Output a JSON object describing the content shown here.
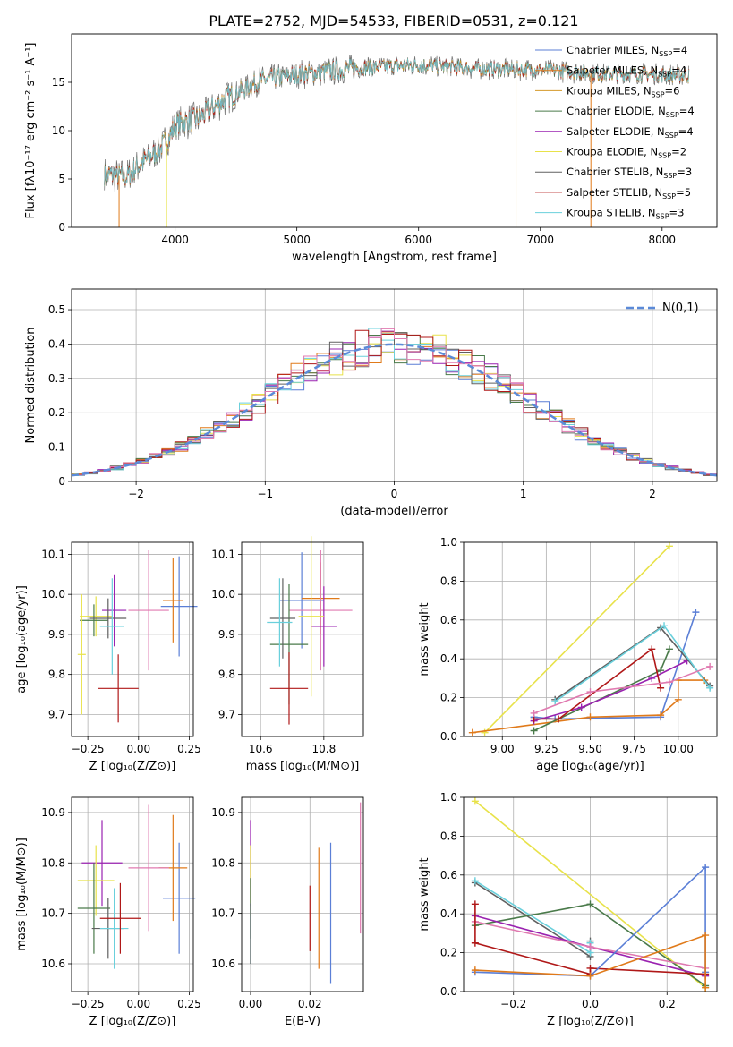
{
  "figure_title": "PLATE=2752, MJD=54533, FIBERID=0531, z=0.121",
  "colors": {
    "Chabrier MILES": "#5b7fd6",
    "Salpeter MILES": "#e07a1a",
    "Kroupa MILES": "#d49a2a",
    "Chabrier ELODIE": "#4a7a4a",
    "Salpeter ELODIE": "#9a22b0",
    "Kroupa ELODIE": "#e8e24a",
    "Chabrier STELIB": "#606060",
    "Salpeter STELIB": "#b01818",
    "Kroupa STELIB": "#6ad0dc",
    "pink": "#e07ab0",
    "lime": "#c8ec50",
    "gaussian": "#5b8ad8",
    "grid": "#b0b0b0"
  },
  "chart_data": [
    {
      "id": "spectrum",
      "type": "line",
      "xlabel": "wavelength [Angstrom, rest frame]",
      "ylabel": "Flux [fλ10⁻¹⁷ erg cm⁻² s⁻¹ A⁻¹]",
      "xlim": [
        3150,
        8450
      ],
      "ylim": [
        0,
        20
      ],
      "xticks": [
        "4000",
        "5000",
        "6000",
        "7000",
        "8000"
      ],
      "yticks": [
        "0",
        "5",
        "10",
        "15"
      ],
      "x_range": [
        3420,
        8220
      ],
      "continuum": [
        [
          3420,
          5.5
        ],
        [
          3600,
          5.2
        ],
        [
          3700,
          6.4
        ],
        [
          3850,
          7.8
        ],
        [
          3950,
          9.2
        ],
        [
          4000,
          10.6
        ],
        [
          4200,
          11.3
        ],
        [
          4400,
          13.2
        ],
        [
          4700,
          15.2
        ],
        [
          5000,
          15.8
        ],
        [
          5500,
          16.5
        ],
        [
          6000,
          16.8
        ],
        [
          6500,
          16.4
        ],
        [
          7000,
          16.3
        ],
        [
          7500,
          15.9
        ],
        [
          8000,
          15.8
        ],
        [
          8220,
          15.7
        ]
      ],
      "legend": [
        {
          "name": "Chabrier MILES, N",
          "sub": "SSP",
          "tail": "=4",
          "color_key": "Chabrier MILES"
        },
        {
          "name": "Salpeter MILES, N",
          "sub": "SSP",
          "tail": "=4",
          "color_key": "Salpeter MILES"
        },
        {
          "name": "Kroupa MILES, N",
          "sub": "SSP",
          "tail": "=6",
          "color_key": "Kroupa MILES"
        },
        {
          "name": "Chabrier ELODIE, N",
          "sub": "SSP",
          "tail": "=4",
          "color_key": "Chabrier ELODIE"
        },
        {
          "name": "Salpeter ELODIE, N",
          "sub": "SSP",
          "tail": "=4",
          "color_key": "Salpeter ELODIE"
        },
        {
          "name": "Kroupa ELODIE, N",
          "sub": "SSP",
          "tail": "=2",
          "color_key": "Kroupa ELODIE"
        },
        {
          "name": "Chabrier STELIB, N",
          "sub": "SSP",
          "tail": "=3",
          "color_key": "Chabrier STELIB"
        },
        {
          "name": "Salpeter STELIB, N",
          "sub": "SSP",
          "tail": "=5",
          "color_key": "Salpeter STELIB"
        },
        {
          "name": "Kroupa STELIB, N",
          "sub": "SSP",
          "tail": "=3",
          "color_key": "Kroupa STELIB"
        }
      ]
    },
    {
      "id": "residuals",
      "type": "step",
      "xlabel": "(data-model)/error",
      "ylabel": "Normed distribution",
      "xlim": [
        -2.5,
        2.5
      ],
      "ylim": [
        0,
        0.56
      ],
      "xticks": [
        -2,
        -1,
        0,
        1,
        2
      ],
      "yticks": [
        0.0,
        0.1,
        0.2,
        0.3,
        0.4,
        0.5
      ],
      "legend_label": "N(0,1)",
      "bin_width": 0.1,
      "series_colors": [
        "Chabrier MILES",
        "Salpeter MILES",
        "Kroupa ELODIE",
        "Chabrier ELODIE",
        "Salpeter ELODIE",
        "Kroupa STELIB",
        "Chabrier STELIB",
        "Salpeter STELIB",
        "pink"
      ],
      "gaussian": "standard normal pdf"
    },
    {
      "id": "age_vs_Z",
      "type": "errorbar",
      "xlabel": "Z [log₁₀(Z/Z⊙)]",
      "ylabel": "age  [log₁₀(age/yr)]",
      "xlim": [
        -0.33,
        0.27
      ],
      "ylim": [
        9.645,
        10.13
      ],
      "xticks": [
        "−0.25",
        "0.00",
        "0.25"
      ],
      "yticks": [
        "9.7",
        "9.8",
        "9.9",
        "10.0",
        "10.1"
      ],
      "points": [
        {
          "x": 0.2,
          "y": 9.97,
          "xe": 0.09,
          "ye": 0.125,
          "c": "Chabrier MILES"
        },
        {
          "x": 0.17,
          "y": 9.985,
          "xe": 0.05,
          "ye": 0.105,
          "c": "Salpeter MILES"
        },
        {
          "x": 0.05,
          "y": 9.96,
          "xe": 0.1,
          "ye": 0.15,
          "c": "pink"
        },
        {
          "x": -0.12,
          "y": 9.96,
          "xe": 0.06,
          "ye": 0.09,
          "c": "Salpeter ELODIE"
        },
        {
          "x": -0.21,
          "y": 9.945,
          "xe": 0.08,
          "ye": 0.05,
          "c": "Kroupa ELODIE"
        },
        {
          "x": -0.22,
          "y": 9.935,
          "xe": 0.07,
          "ye": 0.04,
          "c": "Chabrier ELODIE"
        },
        {
          "x": -0.15,
          "y": 9.94,
          "xe": 0.09,
          "ye": 0.05,
          "c": "Chabrier STELIB"
        },
        {
          "x": -0.13,
          "y": 9.92,
          "xe": 0.06,
          "ye": 0.12,
          "c": "Kroupa STELIB"
        },
        {
          "x": -0.1,
          "y": 9.765,
          "xe": 0.1,
          "ye": 0.085,
          "c": "Salpeter STELIB"
        },
        {
          "x": -0.28,
          "y": 9.85,
          "xe": 0.02,
          "ye": 0.15,
          "c": "Kroupa ELODIE"
        }
      ]
    },
    {
      "id": "age_vs_mass",
      "type": "errorbar",
      "xlabel": "mass [log₁₀(M/M⊙)]",
      "ylabel": "",
      "xlim": [
        10.54,
        10.925
      ],
      "ylim": [
        9.645,
        10.13
      ],
      "xticks": [
        "10.6",
        "10.8"
      ],
      "yticks": [
        "9.7",
        "9.8",
        "9.9",
        "10.0",
        "10.1"
      ],
      "points": [
        {
          "x": 10.73,
          "y": 9.985,
          "xe": 0.07,
          "ye": 0.12,
          "c": "Chabrier MILES"
        },
        {
          "x": 10.79,
          "y": 9.99,
          "xe": 0.06,
          "ye": 0.09,
          "c": "Salpeter MILES"
        },
        {
          "x": 10.79,
          "y": 9.96,
          "xe": 0.1,
          "ye": 0.15,
          "c": "pink"
        },
        {
          "x": 10.8,
          "y": 9.92,
          "xe": 0.04,
          "ye": 0.1,
          "c": "Salpeter ELODIE"
        },
        {
          "x": 10.76,
          "y": 9.945,
          "xe": 0.04,
          "ye": 0.2,
          "c": "Kroupa ELODIE"
        },
        {
          "x": 10.69,
          "y": 9.875,
          "xe": 0.06,
          "ye": 0.15,
          "c": "Chabrier ELODIE"
        },
        {
          "x": 10.67,
          "y": 9.94,
          "xe": 0.04,
          "ye": 0.1,
          "c": "Chabrier STELIB"
        },
        {
          "x": 10.66,
          "y": 9.93,
          "xe": 0.04,
          "ye": 0.11,
          "c": "Kroupa STELIB"
        },
        {
          "x": 10.69,
          "y": 9.765,
          "xe": 0.06,
          "ye": 0.09,
          "c": "Salpeter STELIB"
        }
      ]
    },
    {
      "id": "weight_vs_age",
      "type": "line",
      "xlabel": "age  [log₁₀(age/yr)]",
      "ylabel": "mass weight",
      "xlim": [
        8.78,
        10.22
      ],
      "ylim": [
        0,
        1
      ],
      "xticks": [
        "9.00",
        "9.25",
        "9.50",
        "9.75",
        "10.00"
      ],
      "yticks": [
        "0.0",
        "0.2",
        "0.4",
        "0.6",
        "0.8",
        "1.0"
      ],
      "series": [
        {
          "c": "Kroupa ELODIE",
          "pts": [
            [
              8.9,
              0.02
            ],
            [
              9.95,
              0.98
            ]
          ]
        },
        {
          "c": "Chabrier MILES",
          "pts": [
            [
              9.18,
              0.1
            ],
            [
              9.3,
              0.09
            ],
            [
              9.9,
              0.1
            ],
            [
              10.1,
              0.64
            ]
          ]
        },
        {
          "c": "Salpeter MILES",
          "pts": [
            [
              8.83,
              0.02
            ],
            [
              9.5,
              0.1
            ],
            [
              9.9,
              0.11
            ],
            [
              10.0,
              0.19
            ],
            [
              10.0,
              0.29
            ],
            [
              10.15,
              0.29
            ]
          ]
        },
        {
          "c": "Chabrier ELODIE",
          "pts": [
            [
              9.18,
              0.03
            ],
            [
              9.9,
              0.34
            ],
            [
              9.95,
              0.45
            ]
          ]
        },
        {
          "c": "Salpeter ELODIE",
          "pts": [
            [
              9.18,
              0.08
            ],
            [
              9.45,
              0.15
            ],
            [
              9.85,
              0.3
            ],
            [
              10.05,
              0.39
            ]
          ]
        },
        {
          "c": "Chabrier STELIB",
          "pts": [
            [
              9.3,
              0.19
            ],
            [
              9.9,
              0.56
            ],
            [
              10.18,
              0.26
            ]
          ]
        },
        {
          "c": "Kroupa STELIB",
          "pts": [
            [
              9.3,
              0.18
            ],
            [
              9.92,
              0.57
            ],
            [
              10.18,
              0.25
            ]
          ]
        },
        {
          "c": "Salpeter STELIB",
          "pts": [
            [
              9.18,
              0.09
            ],
            [
              9.32,
              0.09
            ],
            [
              9.85,
              0.45
            ],
            [
              9.9,
              0.25
            ]
          ]
        },
        {
          "c": "pink",
          "pts": [
            [
              9.18,
              0.12
            ],
            [
              9.5,
              0.23
            ],
            [
              9.95,
              0.28
            ],
            [
              10.18,
              0.36
            ]
          ]
        }
      ]
    },
    {
      "id": "mass_vs_Z",
      "type": "errorbar",
      "xlabel": "Z [log₁₀(Z/Z⊙)]",
      "ylabel": "mass [log₁₀(M/M⊙)]",
      "xlim": [
        -0.33,
        0.27
      ],
      "ylim": [
        10.545,
        10.93
      ],
      "xticks": [
        "−0.25",
        "0.00",
        "0.25"
      ],
      "yticks": [
        "10.6",
        "10.7",
        "10.8",
        "10.9"
      ],
      "points": [
        {
          "x": 0.2,
          "y": 10.73,
          "xe": 0.08,
          "ye": 0.11,
          "c": "Chabrier MILES"
        },
        {
          "x": 0.17,
          "y": 10.79,
          "xe": 0.07,
          "ye": 0.105,
          "c": "Salpeter MILES"
        },
        {
          "x": 0.05,
          "y": 10.79,
          "xe": 0.1,
          "ye": 0.125,
          "c": "pink"
        },
        {
          "x": -0.18,
          "y": 10.8,
          "xe": 0.1,
          "ye": 0.085,
          "c": "Salpeter ELODIE"
        },
        {
          "x": -0.21,
          "y": 10.765,
          "xe": 0.09,
          "ye": 0.07,
          "c": "Kroupa ELODIE"
        },
        {
          "x": -0.22,
          "y": 10.71,
          "xe": 0.08,
          "ye": 0.09,
          "c": "Chabrier ELODIE"
        },
        {
          "x": -0.15,
          "y": 10.67,
          "xe": 0.08,
          "ye": 0.06,
          "c": "Chabrier STELIB"
        },
        {
          "x": -0.12,
          "y": 10.67,
          "xe": 0.07,
          "ye": 0.08,
          "c": "Kroupa STELIB"
        },
        {
          "x": -0.09,
          "y": 10.69,
          "xe": 0.1,
          "ye": 0.07,
          "c": "Salpeter STELIB"
        }
      ]
    },
    {
      "id": "mass_vs_ebv",
      "type": "errorbar",
      "xlabel": "E(B-V)",
      "ylabel": "",
      "xlim": [
        -0.003,
        0.038
      ],
      "ylim": [
        10.545,
        10.93
      ],
      "xticks": [
        "0.00",
        "0.02"
      ],
      "yticks": [
        "10.6",
        "10.7",
        "10.8",
        "10.9"
      ],
      "points": [
        {
          "x": 0.0,
          "y": 10.8,
          "ye": 0.085,
          "c": "Salpeter ELODIE"
        },
        {
          "x": 0.0,
          "y": 10.765,
          "ye": 0.07,
          "c": "Kroupa ELODIE"
        },
        {
          "x": 0.0,
          "y": 10.71,
          "ye": 0.06,
          "c": "Chabrier ELODIE"
        },
        {
          "x": 0.0,
          "y": 10.66,
          "ye": 0.06,
          "c": "Kroupa STELIB"
        },
        {
          "x": 0.0,
          "y": 10.66,
          "ye": 0.06,
          "c": "Chabrier STELIB"
        },
        {
          "x": 0.02,
          "y": 10.69,
          "ye": 0.065,
          "c": "Salpeter STELIB"
        },
        {
          "x": 0.023,
          "y": 10.71,
          "ye": 0.12,
          "c": "Salpeter MILES"
        },
        {
          "x": 0.027,
          "y": 10.7,
          "ye": 0.14,
          "c": "Chabrier MILES"
        },
        {
          "x": 0.037,
          "y": 10.79,
          "ye": 0.13,
          "c": "pink"
        }
      ]
    },
    {
      "id": "weight_vs_Z",
      "type": "line",
      "xlabel": "Z [log₁₀(Z/Z⊙)]",
      "ylabel": "mass weight",
      "xlim": [
        -0.33,
        0.33
      ],
      "ylim": [
        0,
        1
      ],
      "xticks": [
        "−0.2",
        "0.0",
        "0.2"
      ],
      "yticks": [
        "0.0",
        "0.2",
        "0.4",
        "0.6",
        "0.8",
        "1.0"
      ],
      "series": [
        {
          "c": "Kroupa ELODIE",
          "pts": [
            [
              -0.3,
              0.98
            ],
            [
              0.3,
              0.02
            ]
          ]
        },
        {
          "c": "Chabrier STELIB",
          "pts": [
            [
              -0.3,
              0.56
            ],
            [
              0.0,
              0.18
            ],
            [
              0.0,
              0.26
            ]
          ]
        },
        {
          "c": "Kroupa STELIB",
          "pts": [
            [
              -0.3,
              0.57
            ],
            [
              0.0,
              0.2
            ],
            [
              0.0,
              0.25
            ]
          ]
        },
        {
          "c": "Chabrier ELODIE",
          "pts": [
            [
              -0.3,
              0.34
            ],
            [
              0.0,
              0.45
            ],
            [
              0.3,
              0.03
            ]
          ]
        },
        {
          "c": "Salpeter ELODIE",
          "pts": [
            [
              -0.3,
              0.39
            ],
            [
              0.0,
              0.23
            ],
            [
              0.3,
              0.08
            ]
          ]
        },
        {
          "c": "pink",
          "pts": [
            [
              -0.3,
              0.36
            ],
            [
              0.0,
              0.23
            ],
            [
              0.3,
              0.12
            ]
          ]
        },
        {
          "c": "Salpeter STELIB",
          "pts": [
            [
              -0.3,
              0.45
            ],
            [
              -0.3,
              0.25
            ],
            [
              0.0,
              0.09
            ],
            [
              0.0,
              0.12
            ],
            [
              0.3,
              0.09
            ]
          ]
        },
        {
          "c": "Chabrier MILES",
          "pts": [
            [
              -0.3,
              0.1
            ],
            [
              0.0,
              0.08
            ],
            [
              0.3,
              0.64
            ],
            [
              0.3,
              0.1
            ]
          ]
        },
        {
          "c": "Salpeter MILES",
          "pts": [
            [
              -0.3,
              0.11
            ],
            [
              0.0,
              0.08
            ],
            [
              0.3,
              0.29
            ],
            [
              0.3,
              0.02
            ]
          ]
        }
      ]
    }
  ]
}
